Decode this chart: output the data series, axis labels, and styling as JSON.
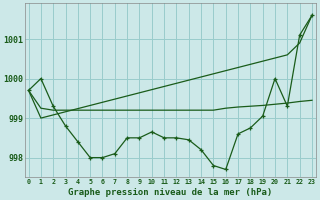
{
  "title": "Graphe pression niveau de la mer (hPa)",
  "background_color": "#cce8e8",
  "grid_color": "#99cccc",
  "line_color": "#1a5c1a",
  "hours": [
    0,
    1,
    2,
    3,
    4,
    5,
    6,
    7,
    8,
    9,
    10,
    11,
    12,
    13,
    14,
    15,
    16,
    17,
    18,
    19,
    20,
    21,
    22,
    23
  ],
  "pressure_zigzag": [
    999.7,
    1000.0,
    999.3,
    998.8,
    998.4,
    998.0,
    998.0,
    998.1,
    998.5,
    998.5,
    998.65,
    998.5,
    998.5,
    998.45,
    998.2,
    997.8,
    997.7,
    998.6,
    998.75,
    999.05,
    1000.0,
    999.3,
    1001.1,
    1001.6
  ],
  "pressure_flat": [
    999.7,
    999.25,
    999.2,
    999.2,
    999.2,
    999.2,
    999.2,
    999.2,
    999.2,
    999.2,
    999.2,
    999.2,
    999.2,
    999.2,
    999.2,
    999.2,
    999.25,
    999.28,
    999.3,
    999.32,
    999.35,
    999.38,
    999.42,
    999.45
  ],
  "pressure_trend": [
    999.7,
    999.0,
    999.08,
    999.16,
    999.24,
    999.32,
    999.4,
    999.48,
    999.56,
    999.64,
    999.72,
    999.8,
    999.88,
    999.96,
    1000.04,
    1000.12,
    1000.2,
    1000.28,
    1000.36,
    1000.44,
    1000.52,
    1000.6,
    1000.9,
    1001.6
  ],
  "yticks": [
    998,
    999,
    1000,
    1001
  ],
  "ylim": [
    997.5,
    1001.9
  ],
  "xlim": [
    -0.3,
    23.3
  ]
}
